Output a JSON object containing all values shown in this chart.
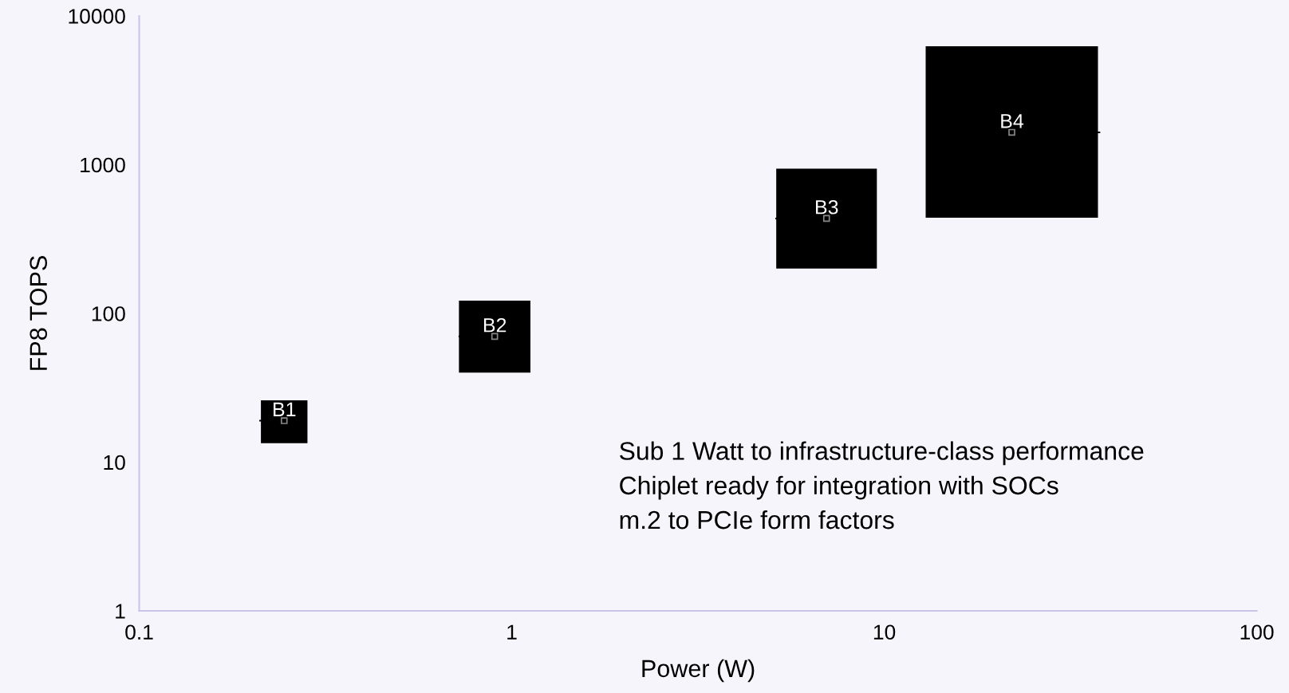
{
  "chart_data": {
    "type": "scatter",
    "xlabel": "Power (W)",
    "ylabel": "FP8 TOPS",
    "log": "xy",
    "marker": "square",
    "grid": false,
    "legend": false,
    "xlim": [
      0.1,
      100
    ],
    "xticks": [
      {
        "value": 0.1,
        "label": "0.1"
      },
      1,
      10,
      100
    ],
    "ylim": [
      1,
      10000
    ],
    "yticks": [
      1,
      10,
      100,
      1000,
      10000
    ],
    "series": [
      {
        "name": "B1",
        "color": "#000000",
        "x": [
          0.245
        ],
        "values": [
          19
        ],
        "xerrors": [
          [
            0.21,
            0.28
          ]
        ],
        "errors": [
          [
            13.4,
            26
          ]
        ]
      },
      {
        "name": "B2",
        "color": "#000000",
        "x": [
          0.9
        ],
        "values": [
          70
        ],
        "xerrors": [
          [
            0.72,
            1.12
          ]
        ],
        "errors": [
          [
            40,
            122
          ]
        ]
      },
      {
        "name": "B3",
        "color": "#000000",
        "x": [
          7
        ],
        "values": [
          435
        ],
        "xerrors": [
          [
            5.1,
            9.5
          ]
        ],
        "errors": [
          [
            200,
            940
          ]
        ]
      },
      {
        "name": "B4",
        "color": "#000000",
        "x": [
          22
        ],
        "values": [
          1650
        ],
        "xerrors": [
          [
            13.1,
            38
          ]
        ],
        "errors": [
          [
            440,
            6250
          ]
        ]
      }
    ],
    "annotations": [
      "Sub 1 Watt to infrastructure-class performance",
      "Chiplet ready for integration with SOCs",
      "m.2 to PCIe form factors"
    ]
  }
}
